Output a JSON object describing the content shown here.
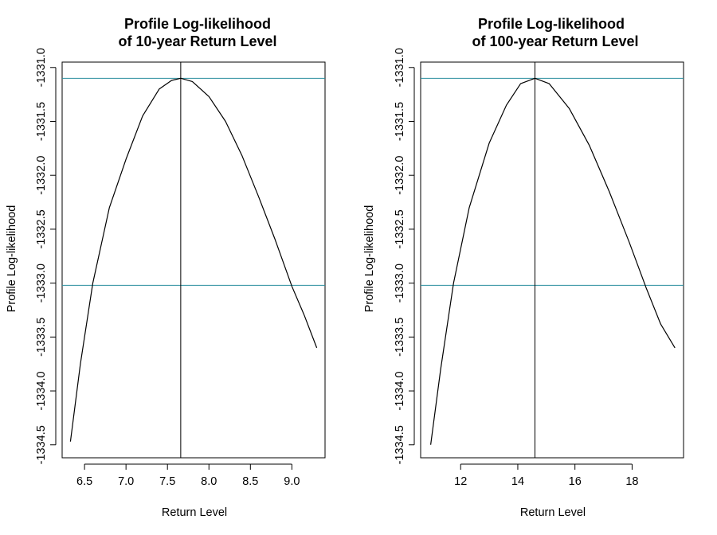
{
  "chart_data": [
    {
      "type": "line",
      "title_lines": [
        "Profile Log-likelihood",
        "of 10-year Return Level"
      ],
      "xlabel": "Return Level",
      "ylabel": "Profile Log-likelihood",
      "xlim": [
        6.23,
        9.4
      ],
      "ylim": [
        -1334.62,
        -1330.95
      ],
      "x_ticks": [
        6.5,
        7.0,
        7.5,
        8.0,
        8.5,
        9.0
      ],
      "x_tick_labels": [
        "6.5",
        "7.0",
        "7.5",
        "8.0",
        "8.5",
        "9.0"
      ],
      "y_ticks": [
        -1331.0,
        -1331.5,
        -1332.0,
        -1332.5,
        -1333.0,
        -1333.5,
        -1334.0,
        -1334.5
      ],
      "y_tick_labels": [
        "-1331.0",
        "-1331.5",
        "-1332.0",
        "-1332.5",
        "-1333.0",
        "-1333.5",
        "-1334.0",
        "-1334.5"
      ],
      "mle_x": 7.66,
      "max_loglik": -1331.1,
      "ci_cutoff": -1333.02,
      "series": [
        {
          "color": "#000000",
          "x": [
            6.33,
            6.45,
            6.6,
            6.8,
            7.0,
            7.2,
            7.4,
            7.55,
            7.66,
            7.8,
            8.0,
            8.2,
            8.4,
            8.6,
            8.8,
            9.0,
            9.15,
            9.3
          ],
          "y": [
            -1334.47,
            -1333.75,
            -1333.0,
            -1332.3,
            -1331.85,
            -1331.45,
            -1331.2,
            -1331.12,
            -1331.1,
            -1331.13,
            -1331.27,
            -1331.5,
            -1331.82,
            -1332.2,
            -1332.6,
            -1333.03,
            -1333.3,
            -1333.6
          ]
        }
      ]
    },
    {
      "type": "line",
      "title_lines": [
        "Profile Log-likelihood",
        "of 100-year Return Level"
      ],
      "xlabel": "Return Level",
      "ylabel": "Profile Log-likelihood",
      "xlim": [
        10.6,
        19.8
      ],
      "ylim": [
        -1334.62,
        -1330.95
      ],
      "x_ticks": [
        12,
        14,
        16,
        18
      ],
      "x_tick_labels": [
        "12",
        "14",
        "16",
        "18"
      ],
      "y_ticks": [
        -1331.0,
        -1331.5,
        -1332.0,
        -1332.5,
        -1333.0,
        -1333.5,
        -1334.0,
        -1334.5
      ],
      "y_tick_labels": [
        "-1331.0",
        "-1331.5",
        "-1332.0",
        "-1332.5",
        "-1333.0",
        "-1333.5",
        "-1334.0",
        "-1334.5"
      ],
      "mle_x": 14.6,
      "max_loglik": -1331.1,
      "ci_cutoff": -1333.02,
      "series": [
        {
          "color": "#000000",
          "x": [
            10.95,
            11.3,
            11.75,
            12.3,
            13.0,
            13.6,
            14.1,
            14.6,
            15.1,
            15.8,
            16.5,
            17.2,
            17.9,
            18.5,
            19.0,
            19.5
          ],
          "y": [
            -1334.5,
            -1333.8,
            -1333.0,
            -1332.3,
            -1331.7,
            -1331.35,
            -1331.15,
            -1331.1,
            -1331.15,
            -1331.38,
            -1331.72,
            -1332.15,
            -1332.62,
            -1333.05,
            -1333.38,
            -1333.6
          ]
        }
      ]
    }
  ],
  "colors": {
    "reference_line": "#2a8e9e",
    "curve": "#000000",
    "axes": "#000000"
  }
}
